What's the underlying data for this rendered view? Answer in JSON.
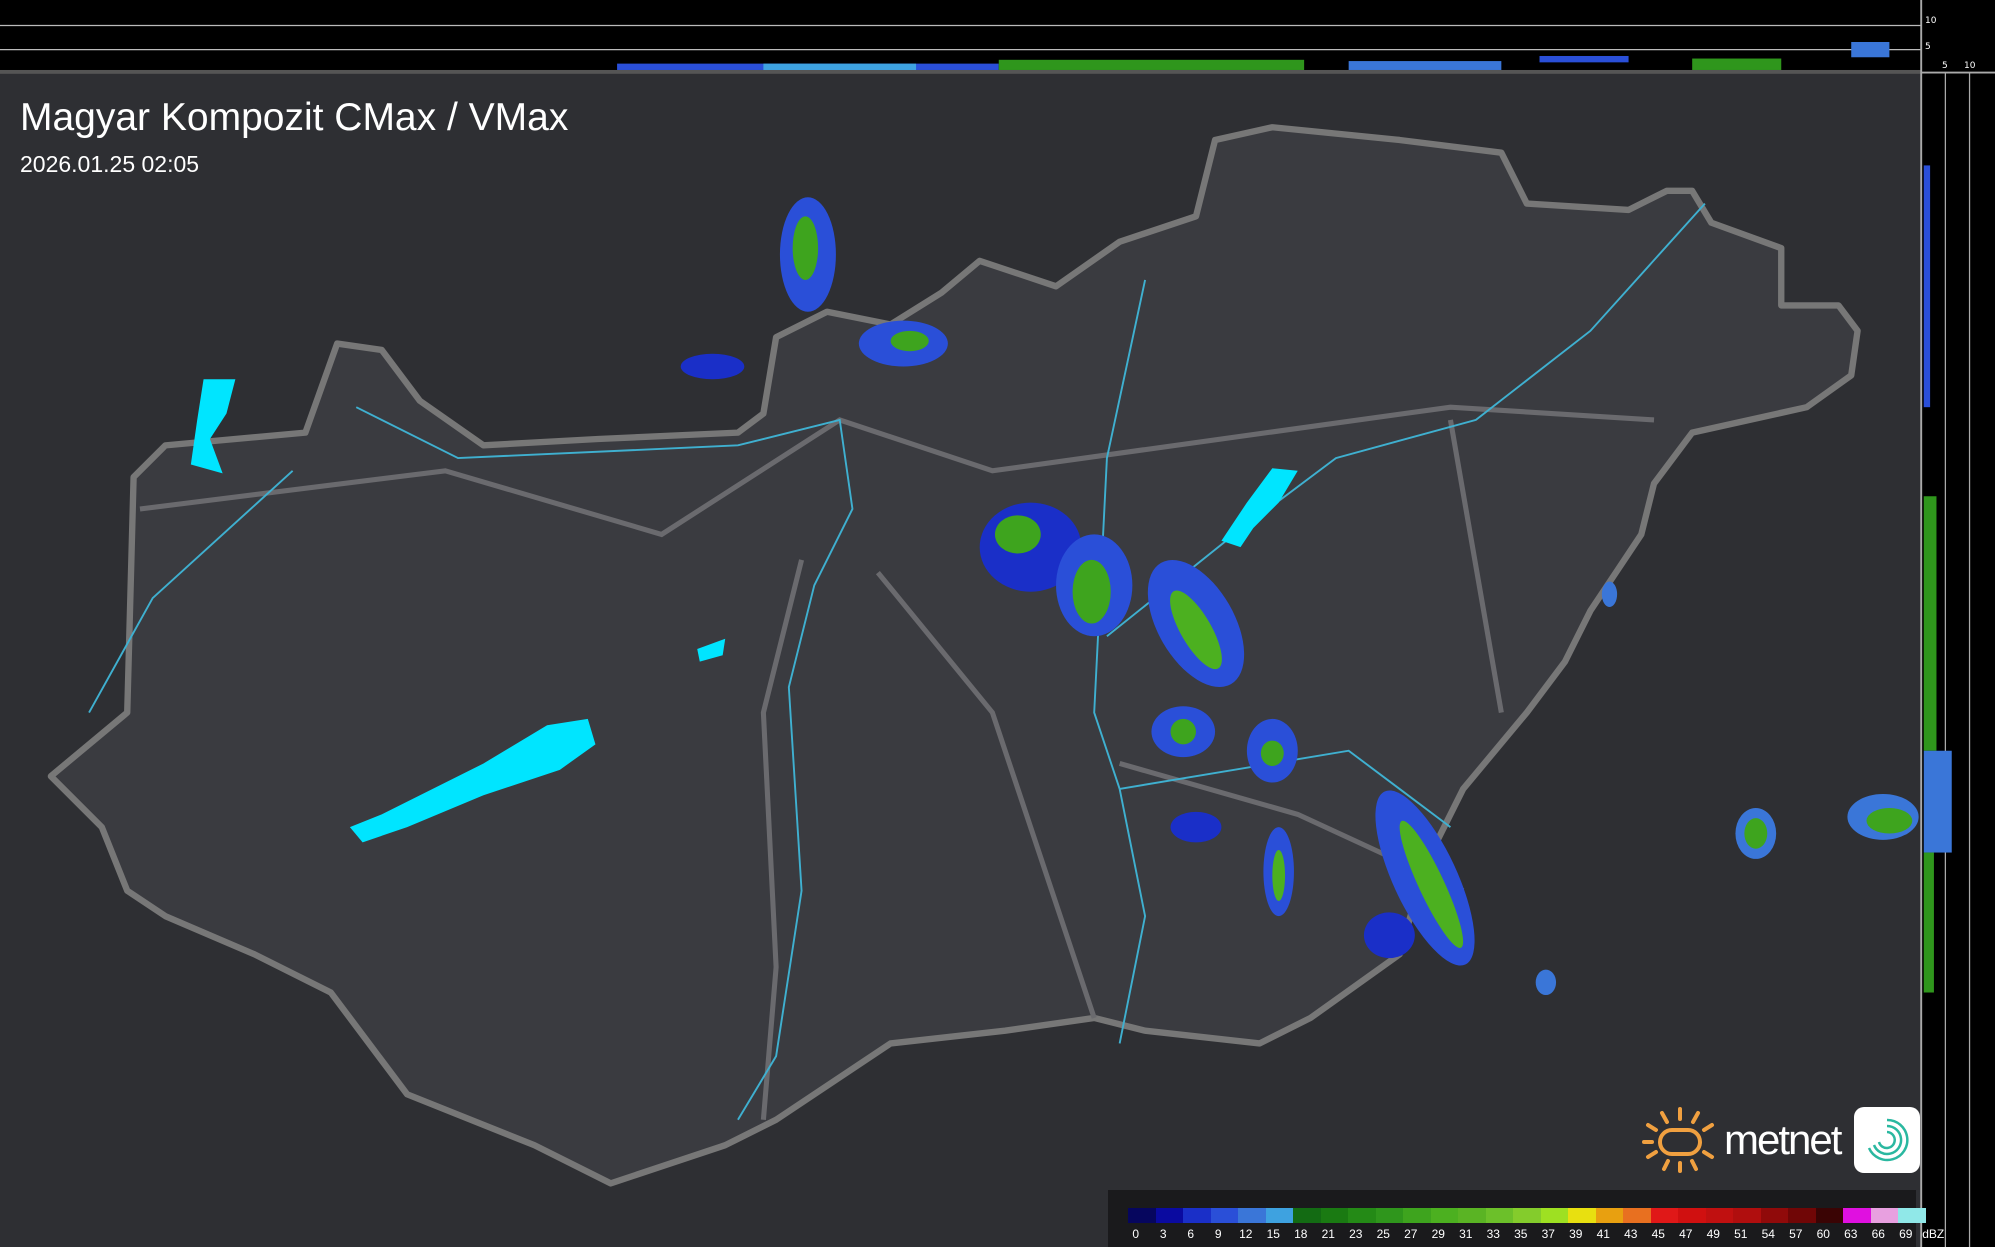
{
  "header": {
    "title": "Magyar Kompozit CMax / VMax",
    "timestamp": "2026.01.25 02:05"
  },
  "side_profile_ticks": {
    "vertical": [
      "10",
      "5"
    ],
    "horizontal": [
      "5",
      "10"
    ]
  },
  "legend": {
    "unit": "dBZ",
    "labels": [
      "0",
      "3",
      "6",
      "9",
      "12",
      "15",
      "18",
      "21",
      "23",
      "25",
      "27",
      "29",
      "31",
      "33",
      "35",
      "37",
      "39",
      "41",
      "43",
      "45",
      "47",
      "49",
      "51",
      "54",
      "57",
      "60",
      "63",
      "66",
      "69"
    ],
    "colors": [
      "#06065e",
      "#0a0aa0",
      "#1a2fc8",
      "#2a4fd8",
      "#3a76d8",
      "#3ea2e0",
      "#136b13",
      "#1a7a12",
      "#248a16",
      "#2f961c",
      "#3ea41e",
      "#4cb020",
      "#5ab424",
      "#6cc02a",
      "#84cc2c",
      "#9ee022",
      "#e8e010",
      "#e8a010",
      "#e87020",
      "#e01818",
      "#d01010",
      "#c01010",
      "#b00e0e",
      "#900a0a",
      "#700606",
      "#3a0404",
      "#e010e0",
      "#e8a0e0",
      "#90e8e8"
    ]
  },
  "branding": {
    "logo_text": "metnet",
    "sun_color": "#f0a040",
    "icon_color": "#2ab8a0"
  },
  "map_colors": {
    "background": "#2e2f33",
    "country": "#3a3b40",
    "border": "#777",
    "rivers": "#3fb0d0",
    "lakes": "#00e5ff"
  }
}
